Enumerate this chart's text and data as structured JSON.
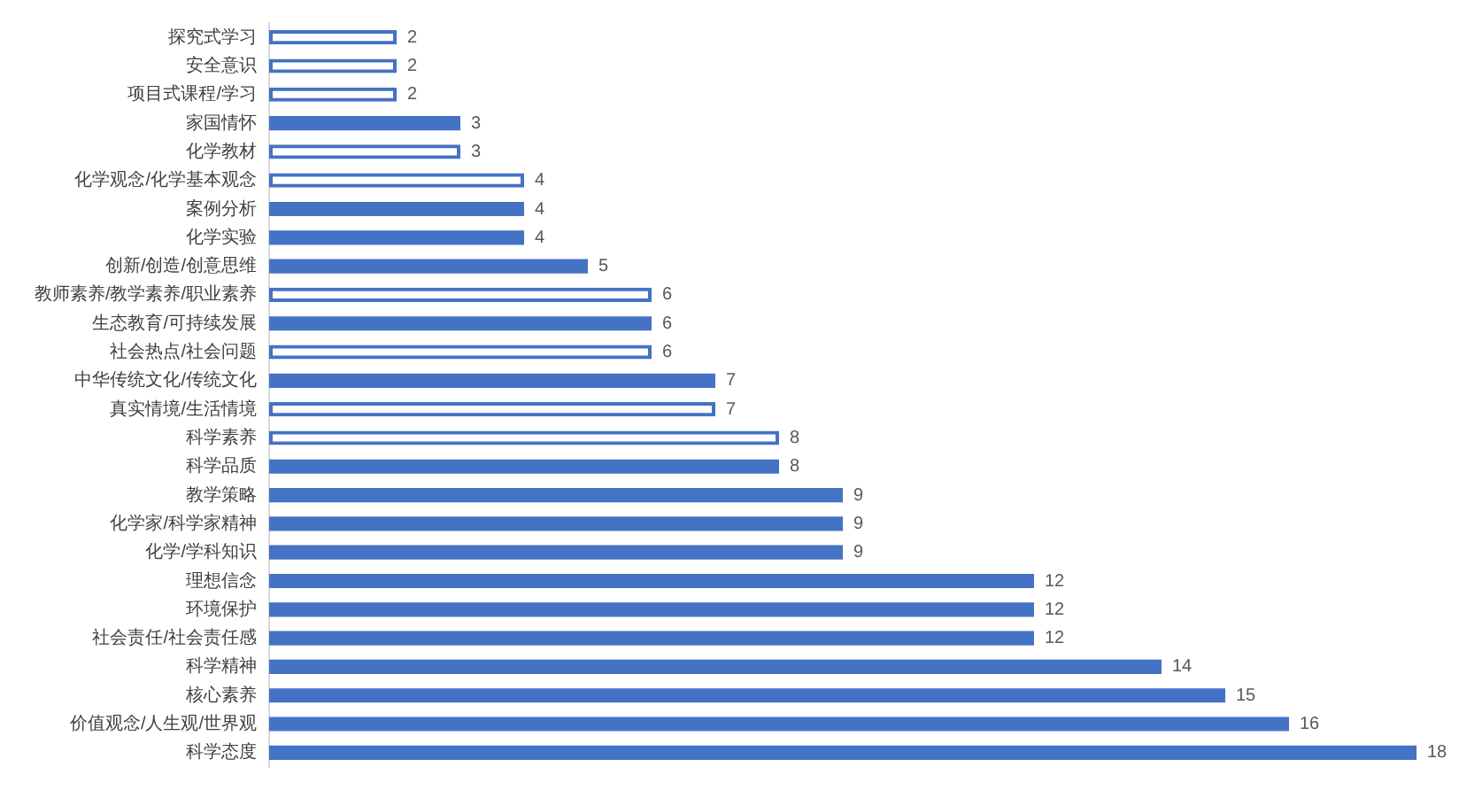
{
  "chart_data": {
    "type": "bar",
    "orientation": "horizontal",
    "categories": [
      "探究式学习",
      "安全意识",
      "项目式课程/学习",
      "家国情怀",
      "化学教材",
      "化学观念/化学基本观念",
      "案例分析",
      "化学实验",
      "创新/创造/创意思维",
      "教师素养/教学素养/职业素养",
      "生态教育/可持续发展",
      "社会热点/社会问题",
      "中华传统文化/传统文化",
      "真实情境/生活情境",
      "科学素养",
      "科学品质",
      "教学策略",
      "化学家/科学家精神",
      "化学/学科知识",
      "理想信念",
      "环境保护",
      "社会责任/社会责任感",
      "科学精神",
      "核心素养",
      "价值观念/人生观/世界观",
      "科学态度"
    ],
    "series": [
      {
        "color": "#4472c4",
        "values": [
          null,
          null,
          null,
          3,
          null,
          null,
          4,
          4,
          5,
          null,
          6,
          null,
          7,
          null,
          null,
          8,
          9,
          9,
          9,
          12,
          12,
          12,
          14,
          15,
          16,
          18
        ]
      },
      {
        "color": "#4472c4",
        "line_style": "solid",
        "values": [
          2,
          2,
          2,
          null,
          3,
          4,
          null,
          null,
          null,
          6,
          null,
          6,
          null,
          7,
          8,
          null,
          null,
          null,
          null,
          null,
          null,
          null,
          null,
          null,
          null,
          null
        ]
      }
    ],
    "xlim": [
      0,
      18
    ],
    "tick_labels": "y",
    "data_labels": true
  }
}
